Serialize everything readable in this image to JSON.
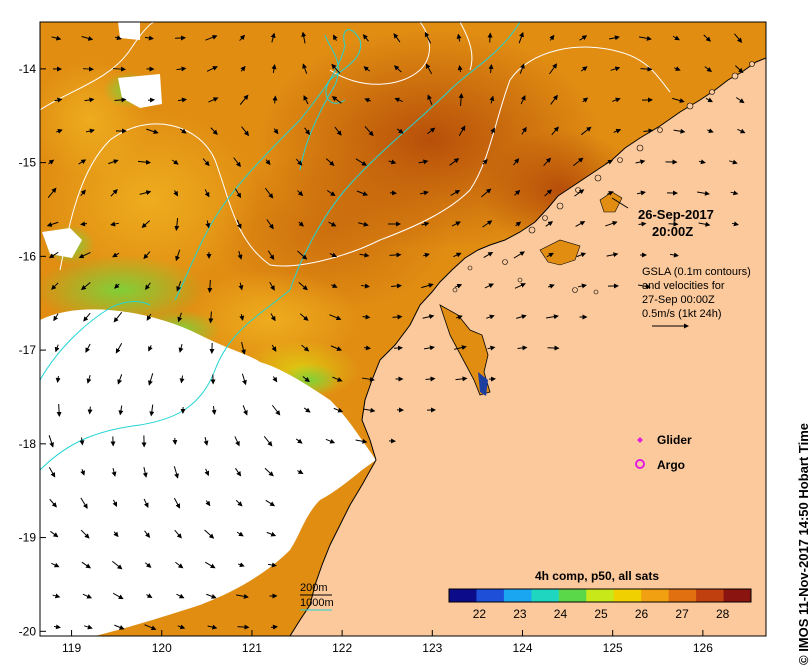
{
  "map": {
    "lon_ticks": [
      "119",
      "120",
      "121",
      "122",
      "123",
      "124",
      "125",
      "126"
    ],
    "lat_ticks": [
      "-14",
      "-15",
      "-16",
      "-17",
      "-18",
      "-19",
      "-20"
    ],
    "lon_range": [
      118.65,
      126.7
    ],
    "lat_range": [
      -20.05,
      -13.5
    ],
    "colors": {
      "land": "#fbc99b",
      "coastline": "#000000",
      "contour": "#ffffff",
      "isobath": "#22d4d4",
      "glider": "#e020e0",
      "argo": "#e020e0"
    }
  },
  "annotations": {
    "date": "26-Sep-2017",
    "time": "20:00Z",
    "gsla_lines": [
      "GSLA (0.1m contours)",
      "and velocities for",
      "27-Sep 00:00Z",
      "0.5m/s (1kt 24h)"
    ]
  },
  "legend": {
    "glider_label": "Glider",
    "argo_label": "Argo",
    "isobath_200": "200m",
    "isobath_1000": "1000m"
  },
  "colorbar": {
    "title": "4h comp, p50, all sats",
    "ticks": [
      "22",
      "23",
      "24",
      "25",
      "26",
      "27",
      "28"
    ],
    "colors": [
      "#0c0c8a",
      "#1e4fd8",
      "#1aa6f0",
      "#1fd6c0",
      "#5bd84a",
      "#c8e81a",
      "#f0d000",
      "#f0a010",
      "#e07010",
      "#c04010",
      "#8a1410"
    ]
  },
  "credit": "© IMOS 11-Nov-2017 14:50 Hobart Time"
}
